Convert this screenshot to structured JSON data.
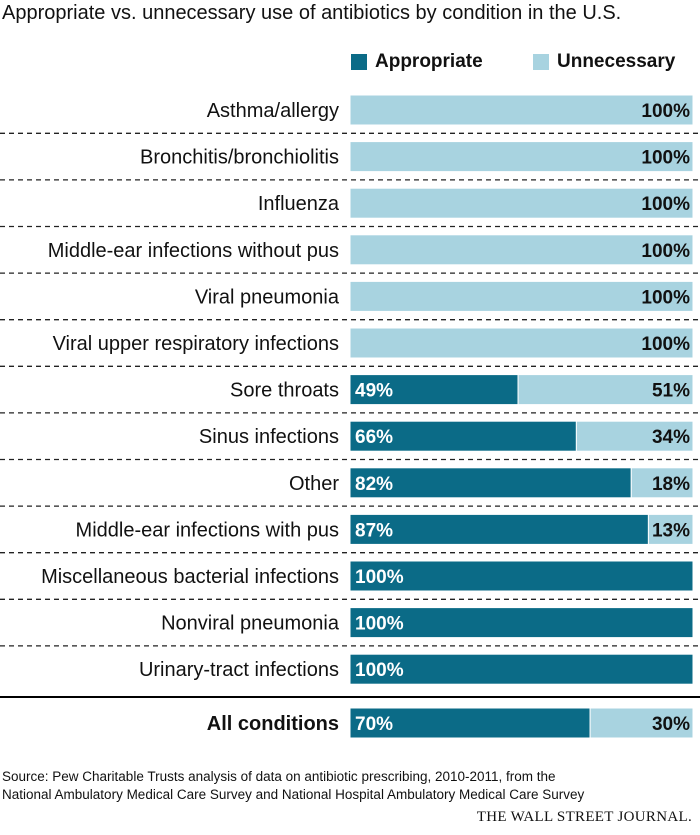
{
  "chart_data": {
    "type": "bar",
    "stacked": true,
    "orientation": "horizontal",
    "title": "Appropriate vs. unnecessary use of antibiotics by condition in the U.S.",
    "categories": [
      "Asthma/allergy",
      "Bronchitis/bronchiolitis",
      "Influenza",
      "Middle-ear infections without pus",
      "Viral pneumonia",
      "Viral upper respiratory infections",
      "Sore throats",
      "Sinus infections",
      "Other",
      "Middle-ear infections with pus",
      "Miscellaneous bacterial infections",
      "Nonviral pneumonia",
      "Urinary-tract infections",
      "All conditions"
    ],
    "series": [
      {
        "name": "Appropriate",
        "color": "#0b6b87",
        "values": [
          0,
          0,
          0,
          0,
          0,
          0,
          49,
          66,
          82,
          87,
          100,
          100,
          100,
          70
        ]
      },
      {
        "name": "Unnecessary",
        "color": "#a8d3e0",
        "values": [
          100,
          100,
          100,
          100,
          100,
          100,
          51,
          34,
          18,
          13,
          0,
          0,
          0,
          30
        ]
      }
    ],
    "unit": "%",
    "xlim": [
      0,
      100
    ],
    "legend": "top-right",
    "grid": false
  },
  "source": {
    "line1": "Source: Pew Charitable Trusts analysis of data on antibiotic prescribing, 2010-2011, from the",
    "line2": "National Ambulatory Medical Care Survey and National Hospital Ambulatory Medical Care Survey"
  },
  "credit": "THE WALL STREET JOURNAL."
}
